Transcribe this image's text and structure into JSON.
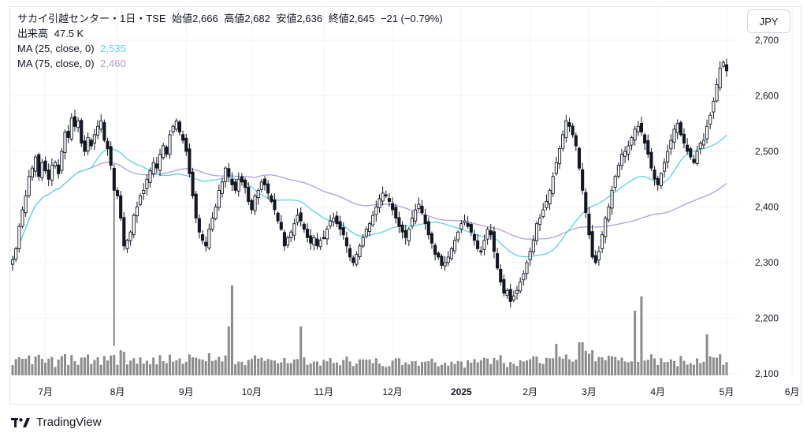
{
  "legend": {
    "title": "サカイ引越センター・1日・TSE",
    "open_label": "始値",
    "open": "2,666",
    "high_label": "高値",
    "high": "2,682",
    "low_label": "安値",
    "low": "2,636",
    "close_label": "終値",
    "close": "2,645",
    "change": "−21 (−0.79%)",
    "volume_label": "出来高",
    "volume": "47.5 K",
    "ma25_label": "MA (25, close, 0)",
    "ma25_value": "2,535",
    "ma75_label": "MA (75, close, 0)",
    "ma75_value": "2,460"
  },
  "currency": "JPY",
  "brand": "TradingView",
  "colors": {
    "candle": "#131722",
    "volume": "#8b8b8b",
    "ma25": "#5bd3e6",
    "ma75": "#b39ddb",
    "grid": "#f0f3fa"
  },
  "chart_data": {
    "type": "candlestick",
    "title": "サカイ引越センター 1日 TSE",
    "y_axis": {
      "ticks": [
        2100,
        2200,
        2300,
        2400,
        2500,
        2600,
        2700
      ],
      "ylim": [
        2100,
        2710
      ]
    },
    "x_axis": {
      "labels": [
        "7月",
        "8月",
        "9月",
        "10月",
        "11月",
        "12月",
        "2025",
        "2月",
        "3月",
        "4月",
        "5月",
        "6月"
      ],
      "label_index": [
        10,
        32,
        53,
        73,
        95,
        116,
        137,
        158,
        176,
        197,
        218,
        238
      ],
      "bold": [
        "2025"
      ]
    },
    "series": [
      {
        "name": "close",
        "values": [
          2305,
          2325,
          2365,
          2395,
          2420,
          2455,
          2470,
          2490,
          2455,
          2480,
          2465,
          2450,
          2475,
          2480,
          2460,
          2500,
          2535,
          2525,
          2560,
          2545,
          2555,
          2515,
          2500,
          2525,
          2510,
          2530,
          2545,
          2555,
          2520,
          2505,
          2475,
          2430,
          2420,
          2380,
          2330,
          2340,
          2355,
          2385,
          2400,
          2420,
          2430,
          2450,
          2465,
          2480,
          2470,
          2495,
          2510,
          2495,
          2530,
          2545,
          2555,
          2535,
          2520,
          2500,
          2460,
          2420,
          2380,
          2355,
          2340,
          2330,
          2360,
          2380,
          2400,
          2430,
          2445,
          2470,
          2455,
          2440,
          2430,
          2450,
          2445,
          2435,
          2410,
          2395,
          2420,
          2430,
          2445,
          2440,
          2425,
          2410,
          2395,
          2375,
          2360,
          2330,
          2345,
          2355,
          2370,
          2385,
          2375,
          2360,
          2345,
          2335,
          2345,
          2330,
          2340,
          2345,
          2360,
          2375,
          2380,
          2370,
          2360,
          2350,
          2330,
          2310,
          2300,
          2315,
          2330,
          2345,
          2360,
          2370,
          2385,
          2400,
          2415,
          2425,
          2420,
          2410,
          2395,
          2380,
          2365,
          2355,
          2345,
          2360,
          2380,
          2395,
          2405,
          2390,
          2370,
          2350,
          2335,
          2315,
          2310,
          2295,
          2300,
          2310,
          2325,
          2340,
          2355,
          2370,
          2375,
          2365,
          2355,
          2340,
          2325,
          2320,
          2340,
          2360,
          2350,
          2320,
          2290,
          2265,
          2245,
          2250,
          2230,
          2240,
          2250,
          2265,
          2280,
          2300,
          2320,
          2340,
          2370,
          2380,
          2395,
          2410,
          2430,
          2455,
          2480,
          2505,
          2530,
          2555,
          2545,
          2530,
          2510,
          2470,
          2430,
          2390,
          2350,
          2310,
          2300,
          2320,
          2350,
          2380,
          2400,
          2430,
          2455,
          2475,
          2495,
          2500,
          2510,
          2525,
          2540,
          2545,
          2535,
          2515,
          2495,
          2470,
          2450,
          2440,
          2460,
          2480,
          2500,
          2520,
          2540,
          2550,
          2530,
          2515,
          2500,
          2490,
          2480,
          2500,
          2515,
          2520,
          2545,
          2565,
          2590,
          2620,
          2650,
          2660,
          2645
        ]
      },
      {
        "name": "volume",
        "unit": "K",
        "latest": 47.5
      },
      {
        "name": "MA (25, close, 0)",
        "latest": 2535
      },
      {
        "name": "MA (75, close, 0)",
        "latest": 2460
      }
    ]
  }
}
